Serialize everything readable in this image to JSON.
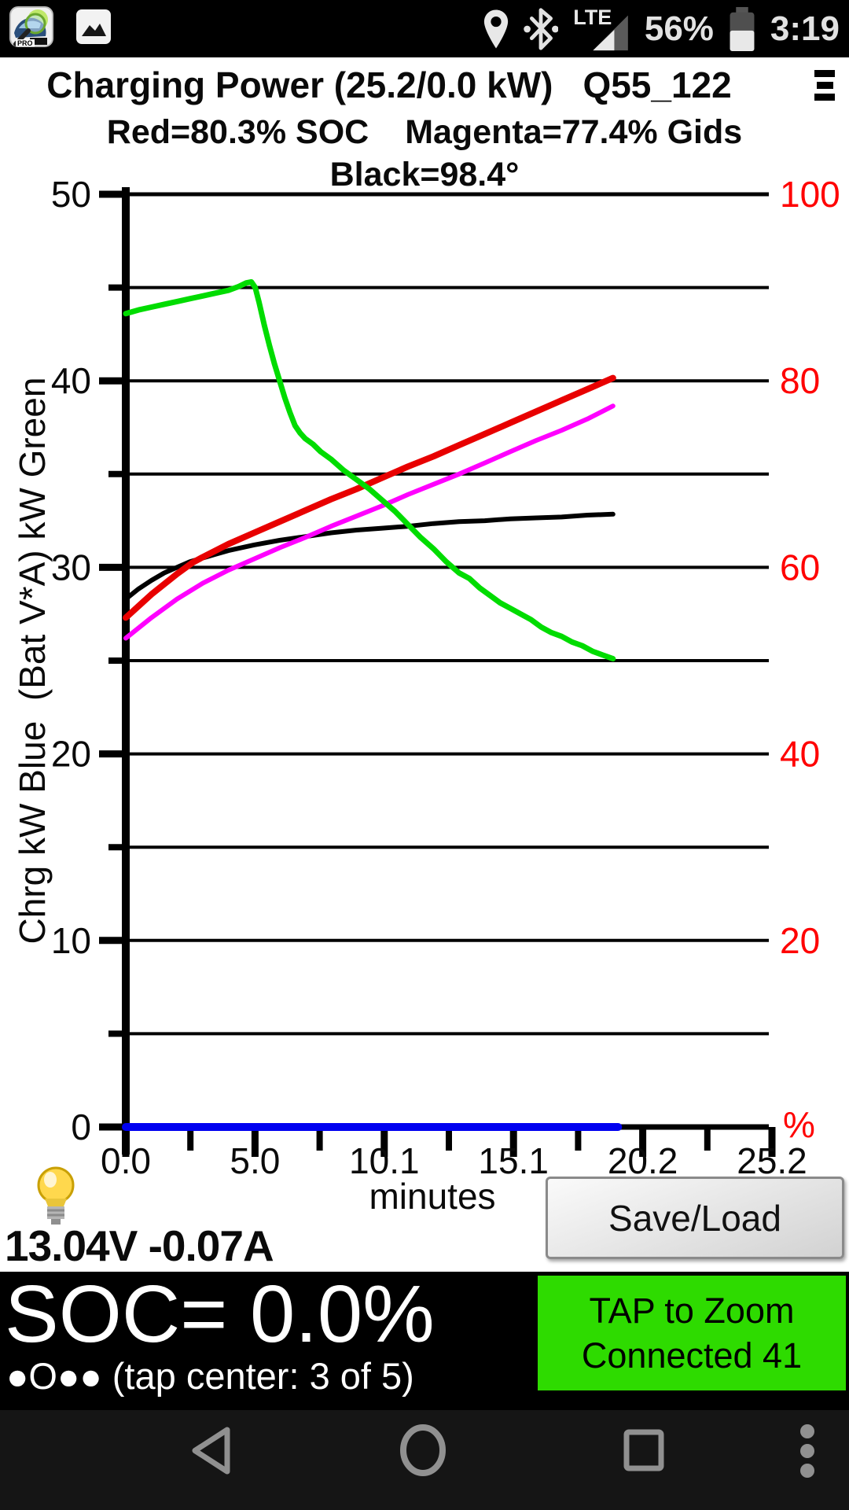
{
  "colors": {
    "status_text": "#e2e2e2",
    "right_axis_red": "#ff0000",
    "curve_green": "#00dc00",
    "curve_red": "#e80000",
    "curve_magenta": "#ff00ff",
    "curve_black": "#000000",
    "curve_blue": "#0000f0",
    "zoom_button_bg": "#2edb00",
    "nav_icon": "#909090"
  },
  "status_bar": {
    "time": "3:19",
    "battery_percent": "56%",
    "network": "LTE",
    "app_badge": "PRO",
    "icons": [
      "leafspy-pro-app-icon",
      "gallery-icon",
      "location-icon",
      "bluetooth-icon",
      "lte-signal-icon",
      "battery-icon"
    ]
  },
  "header": {
    "title": "Charging Power (25.2/0.0 kW)",
    "session_id": "Q55_122",
    "legend_red": "Red=80.3% SOC",
    "legend_magenta": "Magenta=77.4% Gids",
    "legend_black": "Black=98.4°"
  },
  "chart_data": {
    "type": "line",
    "title": "Charging Power (25.2/0.0 kW)",
    "x_label": "minutes",
    "y_left_label": "Chrg kW Blue  (Bat V*A) kW Green",
    "xlim": [
      0,
      25.2
    ],
    "x_minor_step": 2.52,
    "x_ticks_major": {
      "values": [
        0,
        5.04,
        10.08,
        15.12,
        20.16,
        25.2
      ],
      "labels": [
        "0.0",
        "5.0",
        "10.1",
        "15.1",
        "20.2",
        "25.2"
      ]
    },
    "y_left": {
      "min": 0,
      "max": 50,
      "grid_step": 5,
      "labeled": [
        0,
        10,
        20,
        30,
        40,
        50
      ]
    },
    "y_right": {
      "labels": [
        "100",
        "80",
        "60",
        "40",
        "20"
      ],
      "at_left_values": [
        50,
        40,
        30,
        20,
        10
      ],
      "percent_label": "%",
      "color": "#ff0000"
    },
    "grid": true,
    "series": [
      {
        "name": "battery-temp-black",
        "color": "#000000",
        "width": 6,
        "points": [
          [
            0,
            28.3
          ],
          [
            0.5,
            28.85
          ],
          [
            1,
            29.3
          ],
          [
            1.5,
            29.7
          ],
          [
            2,
            30.0
          ],
          [
            2.5,
            30.3
          ],
          [
            3,
            30.5
          ],
          [
            3.5,
            30.7
          ],
          [
            4,
            30.9
          ],
          [
            5,
            31.2
          ],
          [
            6,
            31.45
          ],
          [
            7,
            31.65
          ],
          [
            8,
            31.85
          ],
          [
            9,
            32.0
          ],
          [
            10,
            32.1
          ],
          [
            11,
            32.2
          ],
          [
            12,
            32.35
          ],
          [
            13,
            32.45
          ],
          [
            14,
            32.5
          ],
          [
            15,
            32.6
          ],
          [
            16,
            32.65
          ],
          [
            17,
            32.7
          ],
          [
            18,
            32.8
          ],
          [
            19,
            32.85
          ]
        ]
      },
      {
        "name": "soc-red",
        "color": "#e80000",
        "width": 8,
        "points": [
          [
            0,
            27.3
          ],
          [
            1,
            28.55
          ],
          [
            2,
            29.65
          ],
          [
            2.6,
            30.25
          ],
          [
            3,
            30.55
          ],
          [
            4,
            31.25
          ],
          [
            5,
            31.85
          ],
          [
            6,
            32.45
          ],
          [
            7,
            33.05
          ],
          [
            8,
            33.65
          ],
          [
            9,
            34.2
          ],
          [
            10,
            34.8
          ],
          [
            11,
            35.4
          ],
          [
            12,
            35.95
          ],
          [
            13,
            36.55
          ],
          [
            14,
            37.15
          ],
          [
            15,
            37.75
          ],
          [
            16,
            38.35
          ],
          [
            17,
            38.95
          ],
          [
            18,
            39.55
          ],
          [
            19,
            40.15
          ]
        ]
      },
      {
        "name": "gids-magenta",
        "color": "#ff00ff",
        "width": 6,
        "points": [
          [
            0,
            26.2
          ],
          [
            1,
            27.3
          ],
          [
            2,
            28.3
          ],
          [
            3,
            29.15
          ],
          [
            4,
            29.85
          ],
          [
            5,
            30.45
          ],
          [
            6,
            31.05
          ],
          [
            7,
            31.6
          ],
          [
            8,
            32.2
          ],
          [
            9,
            32.75
          ],
          [
            10,
            33.3
          ],
          [
            11,
            33.9
          ],
          [
            12,
            34.45
          ],
          [
            13,
            35.0
          ],
          [
            14,
            35.6
          ],
          [
            15,
            36.2
          ],
          [
            16,
            36.8
          ],
          [
            17,
            37.35
          ],
          [
            18,
            37.95
          ],
          [
            19,
            38.65
          ]
        ]
      },
      {
        "name": "battery-power-green",
        "color": "#00dc00",
        "width": 7,
        "points": [
          [
            0,
            43.6
          ],
          [
            0.5,
            43.8
          ],
          [
            1,
            43.95
          ],
          [
            1.5,
            44.1
          ],
          [
            2,
            44.25
          ],
          [
            2.5,
            44.4
          ],
          [
            3,
            44.55
          ],
          [
            3.5,
            44.7
          ],
          [
            4,
            44.85
          ],
          [
            4.4,
            45.05
          ],
          [
            4.7,
            45.25
          ],
          [
            4.9,
            45.3
          ],
          [
            5.05,
            45.0
          ],
          [
            5.2,
            44.2
          ],
          [
            5.4,
            43.0
          ],
          [
            5.6,
            41.9
          ],
          [
            5.8,
            40.9
          ],
          [
            6.0,
            40.0
          ],
          [
            6.2,
            39.1
          ],
          [
            6.4,
            38.3
          ],
          [
            6.6,
            37.6
          ],
          [
            6.8,
            37.2
          ],
          [
            7.0,
            36.9
          ],
          [
            7.3,
            36.6
          ],
          [
            7.6,
            36.2
          ],
          [
            8,
            35.8
          ],
          [
            8.5,
            35.2
          ],
          [
            9,
            34.7
          ],
          [
            9.5,
            34.2
          ],
          [
            10,
            33.6
          ],
          [
            10.5,
            33.0
          ],
          [
            11,
            32.3
          ],
          [
            11.5,
            31.6
          ],
          [
            12,
            31.0
          ],
          [
            12.5,
            30.3
          ],
          [
            13,
            29.7
          ],
          [
            13.4,
            29.4
          ],
          [
            13.8,
            28.9
          ],
          [
            14.2,
            28.5
          ],
          [
            14.6,
            28.1
          ],
          [
            15,
            27.8
          ],
          [
            15.4,
            27.5
          ],
          [
            15.8,
            27.2
          ],
          [
            16.2,
            26.8
          ],
          [
            16.6,
            26.5
          ],
          [
            17,
            26.3
          ],
          [
            17.4,
            26.0
          ],
          [
            17.8,
            25.8
          ],
          [
            18.2,
            25.5
          ],
          [
            18.6,
            25.3
          ],
          [
            19,
            25.1
          ]
        ]
      },
      {
        "name": "charge-kw-blue",
        "color": "#0000f0",
        "width": 10,
        "points": [
          [
            0,
            0
          ],
          [
            19.2,
            0
          ]
        ]
      }
    ]
  },
  "footer": {
    "voltage_current": "13.04V -0.07A",
    "save_load_label": "Save/Load"
  },
  "soc_bar": {
    "soc_text": "SOC= 0.0%",
    "pager_text": "●O●● (tap center: 3 of 5)",
    "zoom_button_line1": "TAP to Zoom",
    "zoom_button_line2": "Connected 41"
  }
}
